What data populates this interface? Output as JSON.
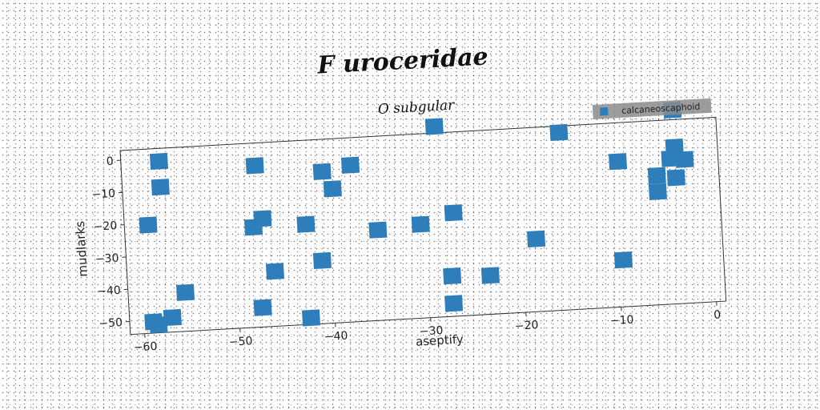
{
  "chart_data": {
    "type": "scatter",
    "title": "F uroceridae",
    "subtitle": "O subgular",
    "xlabel": "aseptify",
    "ylabel": "mudlarks",
    "xlim": [
      -61.5,
      1
    ],
    "ylim": [
      -54,
      3
    ],
    "xticks": [
      -60,
      -50,
      -40,
      -30,
      -20,
      -10,
      0
    ],
    "yticks": [
      0,
      -10,
      -20,
      -30,
      -40,
      -50
    ],
    "grid": false,
    "legend_position": "top-right",
    "series": [
      {
        "name": "calcaneoscaphoid",
        "color": "#2f7ebc",
        "marker": "square",
        "points": [
          [
            -28.5,
            5
          ],
          [
            -3.5,
            6
          ],
          [
            -15.5,
            1
          ],
          [
            -57.5,
            -1
          ],
          [
            -47.5,
            -4
          ],
          [
            -37.5,
            -5.5
          ],
          [
            -40.5,
            -7
          ],
          [
            -3.5,
            -5.5
          ],
          [
            -57.5,
            -9
          ],
          [
            -9.5,
            -9
          ],
          [
            -4,
            -9
          ],
          [
            -2.5,
            -9.5
          ],
          [
            -39.5,
            -12.5
          ],
          [
            -5.5,
            -14
          ],
          [
            -3.5,
            -15
          ],
          [
            -59,
            -20.5
          ],
          [
            -47,
            -20.5
          ],
          [
            -48,
            -23
          ],
          [
            -42.5,
            -23
          ],
          [
            -27,
            -22
          ],
          [
            -5.5,
            -19
          ],
          [
            -35,
            -26
          ],
          [
            -30.5,
            -25
          ],
          [
            -18.5,
            -31.5
          ],
          [
            -41,
            -34.5
          ],
          [
            -46,
            -37
          ],
          [
            -9.5,
            -39.5
          ],
          [
            -55.5,
            -42
          ],
          [
            -27.5,
            -41.5
          ],
          [
            -23.5,
            -42
          ],
          [
            -47.5,
            -48
          ],
          [
            -57,
            -49.5
          ],
          [
            -59,
            -50.5
          ],
          [
            -58.5,
            -51.5
          ],
          [
            -27.5,
            -50
          ],
          [
            -42.5,
            -52
          ]
        ]
      }
    ]
  }
}
